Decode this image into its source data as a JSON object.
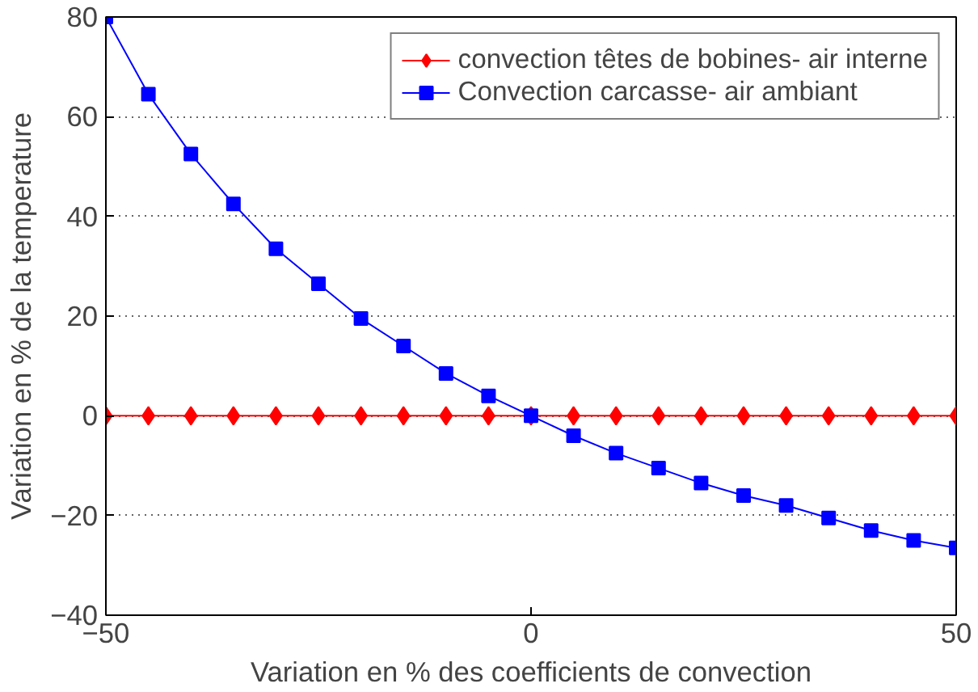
{
  "chart_data": {
    "type": "line",
    "xlabel": "Variation en % des coefficients de convection",
    "ylabel": "Variation en % de la temperature",
    "x": [
      -50,
      -45,
      -40,
      -35,
      -30,
      -25,
      -20,
      -15,
      -10,
      -5,
      0,
      5,
      10,
      15,
      20,
      25,
      30,
      35,
      40,
      45,
      50
    ],
    "series": [
      {
        "name": "convection têtes de bobines- air interne",
        "color": "#ff0000",
        "marker": "diamond",
        "values": [
          0,
          0,
          0,
          0,
          0,
          0,
          0,
          0,
          0,
          0,
          0,
          0,
          0,
          0,
          0,
          0,
          0,
          0,
          0,
          0,
          0
        ]
      },
      {
        "name": "Convection carcasse- air ambiant",
        "color": "#0000ff",
        "marker": "square",
        "values": [
          80,
          64.5,
          52.5,
          42.5,
          33.5,
          26.5,
          19.5,
          14,
          8.5,
          4,
          0,
          -4,
          -7.5,
          -10.5,
          -13.5,
          -16,
          -18,
          -20.5,
          -23,
          -25,
          -26.5
        ]
      }
    ],
    "xlim": [
      -50,
      50
    ],
    "xticks": [
      -50,
      0,
      50
    ],
    "ylim": [
      -40,
      80
    ],
    "yticks": [
      -40,
      -20,
      0,
      20,
      40,
      60,
      80
    ],
    "grid": "y",
    "legend": "top right",
    "line_style": "solid"
  }
}
